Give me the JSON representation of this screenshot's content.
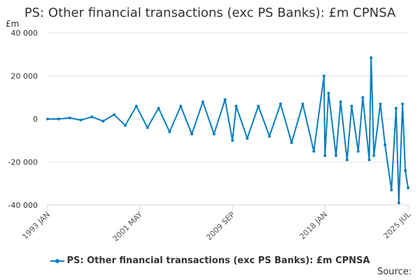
{
  "chart_data": {
    "type": "line",
    "title": "PS: Other financial transactions (exc PS Banks): £m CPNSA",
    "yunit": "£m",
    "ylim": [
      -40000,
      40000
    ],
    "yticks": [
      {
        "value": 40000,
        "label": "40 000"
      },
      {
        "value": 20000,
        "label": "20 000"
      },
      {
        "value": 0,
        "label": "0"
      },
      {
        "value": -20000,
        "label": "-20 000"
      },
      {
        "value": -40000,
        "label": "-40 000"
      }
    ],
    "xlim": [
      "1993-01",
      "2025-07"
    ],
    "xticks": [
      {
        "value": "1993-01",
        "label": "1993 JAN"
      },
      {
        "value": "2001-05",
        "label": "2001 MAY"
      },
      {
        "value": "2009-09",
        "label": "2009 SEP"
      },
      {
        "value": "2018-01",
        "label": "2018 JAN"
      },
      {
        "value": "2025-07",
        "label": "2025 JUL"
      }
    ],
    "grid": true,
    "legend": "bottom",
    "source_label": "Source:",
    "series": [
      {
        "name": "PS: Other financial transactions (exc PS Banks): £m CPNSA",
        "color": "#0a7ec2",
        "x": [
          "1993-01",
          "1994-01",
          "1995-01",
          "1996-01",
          "1997-01",
          "1998-01",
          "1999-01",
          "2000-01",
          "2001-01",
          "2002-01",
          "2003-01",
          "2004-01",
          "2005-01",
          "2006-01",
          "2007-01",
          "2008-01",
          "2009-01",
          "2009-09",
          "2010-01",
          "2011-01",
          "2012-01",
          "2013-01",
          "2014-01",
          "2015-01",
          "2016-01",
          "2017-01",
          "2017-12",
          "2018-01",
          "2018-05",
          "2019-01",
          "2019-06",
          "2020-01",
          "2020-06",
          "2021-01",
          "2021-06",
          "2022-01",
          "2022-03",
          "2022-06",
          "2023-01",
          "2023-06",
          "2024-01",
          "2024-06",
          "2024-09",
          "2025-01",
          "2025-04",
          "2025-07"
        ],
        "values": [
          0,
          0,
          500,
          -500,
          1000,
          -1000,
          2000,
          -3000,
          6000,
          -4000,
          5000,
          -6000,
          6000,
          -7000,
          8000,
          -7000,
          9000,
          -10000,
          6000,
          -9000,
          6000,
          -8000,
          7000,
          -11000,
          7000,
          -15000,
          20000,
          -17000,
          12000,
          -17000,
          8000,
          -19000,
          6000,
          -15000,
          10000,
          -19000,
          28500,
          -17000,
          7000,
          -12000,
          -33000,
          5000,
          -39000,
          7000,
          -24000,
          -32000
        ]
      }
    ]
  }
}
